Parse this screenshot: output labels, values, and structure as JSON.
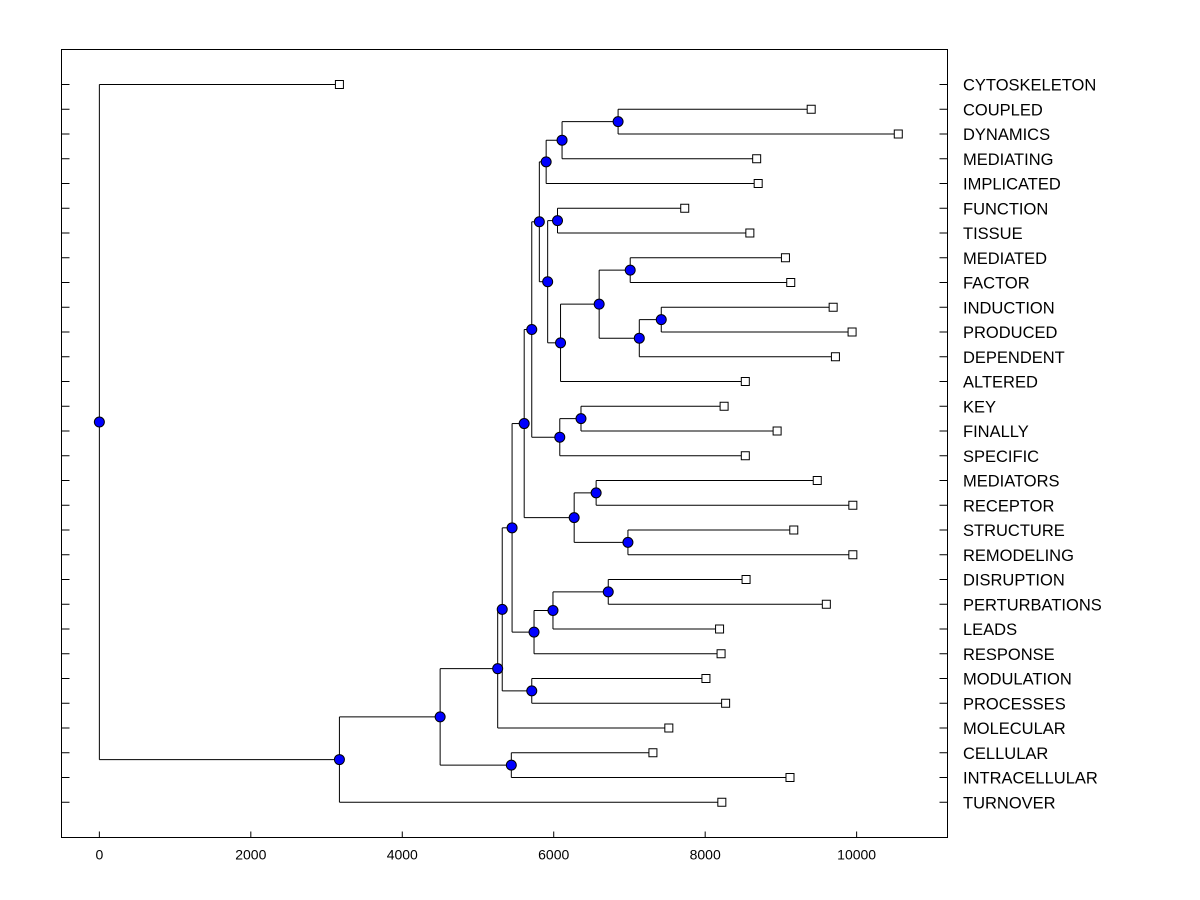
{
  "chart_data": {
    "type": "dendrogram",
    "orientation": "horizontal",
    "xlim": [
      -500,
      11200
    ],
    "x_ticks": [
      0,
      2000,
      4000,
      6000,
      8000,
      10000
    ],
    "x_tick_labels": [
      "0",
      "2000",
      "4000",
      "6000",
      "8000",
      "10000"
    ],
    "node_color": "#0000ff",
    "leaf_marker_color": "#ffffff",
    "leaves": [
      {
        "label": "CYTOSKELETON",
        "x": 3170
      },
      {
        "label": "COUPLED",
        "x": 9400
      },
      {
        "label": "DYNAMICS",
        "x": 10550
      },
      {
        "label": "MEDIATING",
        "x": 8680
      },
      {
        "label": "IMPLICATED",
        "x": 8700
      },
      {
        "label": "FUNCTION",
        "x": 7730
      },
      {
        "label": "TISSUE",
        "x": 8590
      },
      {
        "label": "MEDIATED",
        "x": 9060
      },
      {
        "label": "FACTOR",
        "x": 9130
      },
      {
        "label": "INDUCTION",
        "x": 9690
      },
      {
        "label": "PRODUCED",
        "x": 9940
      },
      {
        "label": "DEPENDENT",
        "x": 9720
      },
      {
        "label": "ALTERED",
        "x": 8530
      },
      {
        "label": "KEY",
        "x": 8250
      },
      {
        "label": "FINALLY",
        "x": 8950
      },
      {
        "label": "SPECIFIC",
        "x": 8530
      },
      {
        "label": "MEDIATORS",
        "x": 9480
      },
      {
        "label": "RECEPTOR",
        "x": 9950
      },
      {
        "label": "STRUCTURE",
        "x": 9170
      },
      {
        "label": "REMODELING",
        "x": 9950
      },
      {
        "label": "DISRUPTION",
        "x": 8540
      },
      {
        "label": "PERTURBATIONS",
        "x": 9600
      },
      {
        "label": "LEADS",
        "x": 8190
      },
      {
        "label": "RESPONSE",
        "x": 8210
      },
      {
        "label": "MODULATION",
        "x": 8010
      },
      {
        "label": "PROCESSES",
        "x": 8270
      },
      {
        "label": "MOLECULAR",
        "x": 7520
      },
      {
        "label": "CELLULAR",
        "x": 7310
      },
      {
        "label": "INTRACELLULAR",
        "x": 9120
      },
      {
        "label": "TURNOVER",
        "x": 8220
      }
    ],
    "nodes": [
      {
        "id": "n1",
        "x": 6850,
        "children": [
          "1",
          "2"
        ]
      },
      {
        "id": "n2",
        "x": 6110,
        "children": [
          "n1",
          "3"
        ]
      },
      {
        "id": "n3",
        "x": 5900,
        "children": [
          "n2",
          "4"
        ]
      },
      {
        "id": "n4",
        "x": 6050,
        "children": [
          "5",
          "6"
        ]
      },
      {
        "id": "n5",
        "x": 7010,
        "children": [
          "7",
          "8"
        ]
      },
      {
        "id": "n6",
        "x": 7420,
        "children": [
          "9",
          "10"
        ]
      },
      {
        "id": "n7",
        "x": 7130,
        "children": [
          "n6",
          "11"
        ]
      },
      {
        "id": "n8",
        "x": 6600,
        "children": [
          "n5",
          "n7"
        ]
      },
      {
        "id": "n9",
        "x": 6090,
        "children": [
          "n8",
          "12"
        ]
      },
      {
        "id": "n10",
        "x": 5920,
        "children": [
          "n4",
          "n9"
        ]
      },
      {
        "id": "n11",
        "x": 5810,
        "children": [
          "n3",
          "n10"
        ]
      },
      {
        "id": "n12",
        "x": 6360,
        "children": [
          "13",
          "14"
        ]
      },
      {
        "id": "n13",
        "x": 6080,
        "children": [
          "n12",
          "15"
        ]
      },
      {
        "id": "n14",
        "x": 5710,
        "children": [
          "n11",
          "n13"
        ]
      },
      {
        "id": "n15",
        "x": 6560,
        "children": [
          "16",
          "17"
        ]
      },
      {
        "id": "n16",
        "x": 6980,
        "children": [
          "18",
          "19"
        ]
      },
      {
        "id": "n17",
        "x": 6270,
        "children": [
          "n15",
          "n16"
        ]
      },
      {
        "id": "n18",
        "x": 5610,
        "children": [
          "n14",
          "n17"
        ]
      },
      {
        "id": "n19",
        "x": 6720,
        "children": [
          "20",
          "21"
        ]
      },
      {
        "id": "n20",
        "x": 5990,
        "children": [
          "n19",
          "22"
        ]
      },
      {
        "id": "n21",
        "x": 5740,
        "children": [
          "n20",
          "23"
        ]
      },
      {
        "id": "n22",
        "x": 5450,
        "children": [
          "n18",
          "n21"
        ]
      },
      {
        "id": "n23",
        "x": 5710,
        "children": [
          "24",
          "25"
        ]
      },
      {
        "id": "n24",
        "x": 5320,
        "children": [
          "n22",
          "n23"
        ]
      },
      {
        "id": "n25",
        "x": 5260,
        "children": [
          "n24",
          "26"
        ]
      },
      {
        "id": "n26",
        "x": 5440,
        "children": [
          "27",
          "28"
        ]
      },
      {
        "id": "n27",
        "x": 4500,
        "children": [
          "n25",
          "n26"
        ]
      },
      {
        "id": "n28",
        "x": 3170,
        "children": [
          "n27",
          "29"
        ]
      },
      {
        "id": "n29",
        "x": 0,
        "children": [
          "0",
          "n28"
        ]
      }
    ]
  }
}
